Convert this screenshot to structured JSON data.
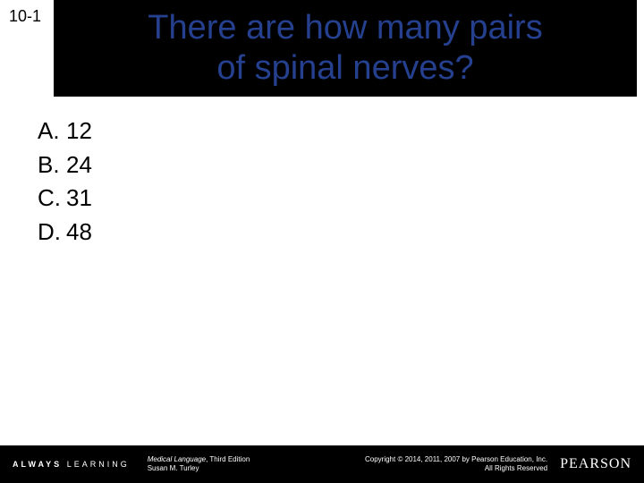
{
  "section_label": "10-1",
  "title": {
    "line1": "There are how many pairs",
    "line2": "of spinal nerves?",
    "color": "#25408f",
    "band_bg": "#000000",
    "fontsize": 38
  },
  "options": [
    {
      "letter": "A.",
      "text": "12"
    },
    {
      "letter": "B.",
      "text": "24"
    },
    {
      "letter": "C.",
      "text": "31"
    },
    {
      "letter": "D.",
      "text": "48"
    }
  ],
  "options_style": {
    "fontsize": 26,
    "color": "#000000"
  },
  "footer": {
    "bg": "#000000",
    "always_bold": "ALWAYS",
    "always_rest": " LEARNING",
    "book_line1_ital": "Medical Language",
    "book_line1_rest": ", Third Edition",
    "book_line2": "Susan M. Turley",
    "copyright_line1": "Copyright © 2014, 2011, 2007 by Pearson Education, Inc.",
    "copyright_line2": "All Rights Reserved",
    "brand": "PEARSON"
  }
}
